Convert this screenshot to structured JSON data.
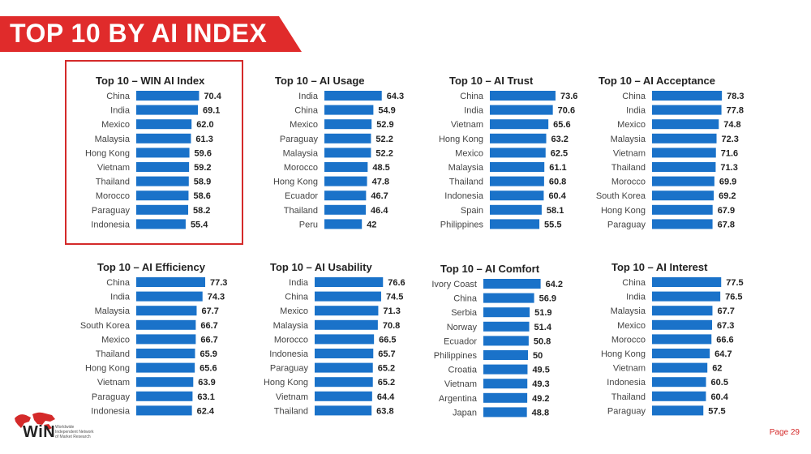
{
  "header": {
    "title": "TOP 10 BY AI INDEX",
    "banner_color": "#e02b2b"
  },
  "bar_color": "#1a72c9",
  "chart_data": [
    {
      "type": "bar",
      "orientation": "horizontal",
      "title": "Top 10 – WIN AI Index",
      "categories": [
        "China",
        "India",
        "Mexico",
        "Malaysia",
        "Hong Kong",
        "Vietnam",
        "Thailand",
        "Morocco",
        "Paraguay",
        "Indonesia"
      ],
      "values": [
        70.4,
        69.1,
        62.0,
        61.3,
        59.6,
        59.2,
        58.9,
        58.6,
        58.2,
        55.4
      ],
      "labels": [
        "70.4",
        "69.1",
        "62.0",
        "61.3",
        "59.6",
        "59.2",
        "58.9",
        "58.6",
        "58.2",
        "55.4"
      ]
    },
    {
      "type": "bar",
      "orientation": "horizontal",
      "title": "Top 10 – AI Usage",
      "categories": [
        "India",
        "China",
        "Mexico",
        "Paraguay",
        "Malaysia",
        "Morocco",
        "Hong Kong",
        "Ecuador",
        "Thailand",
        "Peru"
      ],
      "values": [
        64.3,
        54.9,
        52.9,
        52.2,
        52.2,
        48.5,
        47.8,
        46.7,
        46.4,
        42
      ],
      "labels": [
        "64.3",
        "54.9",
        "52.9",
        "52.2",
        "52.2",
        "48.5",
        "47.8",
        "46.7",
        "46.4",
        "42"
      ]
    },
    {
      "type": "bar",
      "orientation": "horizontal",
      "title": "Top 10 – AI Trust",
      "categories": [
        "China",
        "India",
        "Vietnam",
        "Hong Kong",
        "Mexico",
        "Malaysia",
        "Thailand",
        "Indonesia",
        "Spain",
        "Philippines"
      ],
      "values": [
        73.6,
        70.6,
        65.6,
        63.2,
        62.5,
        61.1,
        60.8,
        60.4,
        58.1,
        55.5
      ],
      "labels": [
        "73.6",
        "70.6",
        "65.6",
        "63.2",
        "62.5",
        "61.1",
        "60.8",
        "60.4",
        "58.1",
        "55.5"
      ]
    },
    {
      "type": "bar",
      "orientation": "horizontal",
      "title": "Top 10 – AI Acceptance",
      "categories": [
        "China",
        "India",
        "Mexico",
        "Malaysia",
        "Vietnam",
        "Thailand",
        "Morocco",
        "South Korea",
        "Hong Kong",
        "Paraguay"
      ],
      "values": [
        78.3,
        77.8,
        74.8,
        72.3,
        71.6,
        71.3,
        69.9,
        69.2,
        67.9,
        67.8
      ],
      "labels": [
        "78.3",
        "77.8",
        "74.8",
        "72.3",
        "71.6",
        "71.3",
        "69.9",
        "69.2",
        "67.9",
        "67.8"
      ]
    },
    {
      "type": "bar",
      "orientation": "horizontal",
      "title": "Top 10 – AI Efficiency",
      "categories": [
        "China",
        "India",
        "Malaysia",
        "South Korea",
        "Mexico",
        "Thailand",
        "Hong Kong",
        "Vietnam",
        "Paraguay",
        "Indonesia"
      ],
      "values": [
        77.3,
        74.3,
        67.7,
        66.7,
        66.7,
        65.9,
        65.6,
        63.9,
        63.1,
        62.4
      ],
      "labels": [
        "77.3",
        "74.3",
        "67.7",
        "66.7",
        "66.7",
        "65.9",
        "65.6",
        "63.9",
        "63.1",
        "62.4"
      ]
    },
    {
      "type": "bar",
      "orientation": "horizontal",
      "title": "Top 10 – AI Usability",
      "categories": [
        "India",
        "China",
        "Mexico",
        "Malaysia",
        "Morocco",
        "Indonesia",
        "Paraguay",
        "Hong Kong",
        "Vietnam",
        "Thailand"
      ],
      "values": [
        76.6,
        74.5,
        71.3,
        70.8,
        66.5,
        65.7,
        65.2,
        65.2,
        64.4,
        63.8
      ],
      "labels": [
        "76.6",
        "74.5",
        "71.3",
        "70.8",
        "66.5",
        "65.7",
        "65.2",
        "65.2",
        "64.4",
        "63.8"
      ]
    },
    {
      "type": "bar",
      "orientation": "horizontal",
      "title": "Top 10 – AI Comfort",
      "categories": [
        "Ivory Coast",
        "China",
        "Serbia",
        "Norway",
        "Ecuador",
        "Philippines",
        "Croatia",
        "Vietnam",
        "Argentina",
        "Japan"
      ],
      "values": [
        64.2,
        56.9,
        51.9,
        51.4,
        50.8,
        50,
        49.5,
        49.3,
        49.2,
        48.8
      ],
      "labels": [
        "64.2",
        "56.9",
        "51.9",
        "51.4",
        "50.8",
        "50",
        "49.5",
        "49.3",
        "49.2",
        "48.8"
      ]
    },
    {
      "type": "bar",
      "orientation": "horizontal",
      "title": "Top 10 – AI Interest",
      "categories": [
        "China",
        "India",
        "Malaysia",
        "Mexico",
        "Morocco",
        "Hong Kong",
        "Vietnam",
        "Indonesia",
        "Thailand",
        "Paraguay"
      ],
      "values": [
        77.5,
        76.5,
        67.7,
        67.3,
        66.6,
        64.7,
        62,
        60.5,
        60.4,
        57.5
      ],
      "labels": [
        "77.5",
        "76.5",
        "67.7",
        "67.3",
        "66.6",
        "64.7",
        "62",
        "60.5",
        "60.4",
        "57.5"
      ]
    }
  ],
  "footer": {
    "logo_text": "WiN",
    "logo_small_text": "Worldwide\nIndependent Network\nof Market Research",
    "page_label": "Page 29"
  }
}
